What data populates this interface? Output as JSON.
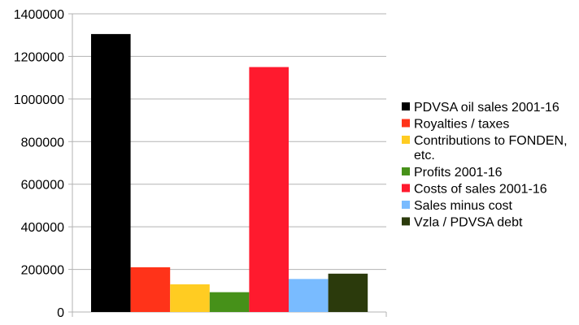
{
  "chart_data": {
    "type": "bar",
    "title": "",
    "xlabel": "",
    "ylabel": "",
    "ylim": [
      0,
      1400000
    ],
    "yticks": [
      0,
      200000,
      400000,
      600000,
      800000,
      1000000,
      1200000,
      1400000
    ],
    "grid": true,
    "legend_position": "right",
    "series": [
      {
        "name": "PDVSA oil sales 2001-16",
        "value": 1305000,
        "color": "#000000",
        "legend_lines": [
          "PDVSA oil sales 2001-16"
        ]
      },
      {
        "name": "Royalties / taxes",
        "value": 210000,
        "color": "#ff3319",
        "legend_lines": [
          "Royalties / taxes"
        ]
      },
      {
        "name": "Contributions to FONDEN, etc.",
        "value": 130000,
        "color": "#ffcc22",
        "legend_lines": [
          "Contributions to FONDEN,",
          "etc."
        ]
      },
      {
        "name": "Profits 2001-16",
        "value": 93000,
        "color": "#469119",
        "legend_lines": [
          "Profits 2001-16"
        ]
      },
      {
        "name": "Costs of sales 2001-16",
        "value": 1150000,
        "color": "#ff1a2e",
        "legend_lines": [
          "Costs of sales 2001-16"
        ]
      },
      {
        "name": "Sales minus cost",
        "value": 155000,
        "color": "#79bbff",
        "legend_lines": [
          "Sales minus cost"
        ]
      },
      {
        "name": "Vzla / PDVSA debt",
        "value": 180000,
        "color": "#2b3a0c",
        "legend_lines": [
          "Vzla / PDVSA debt"
        ]
      }
    ]
  }
}
